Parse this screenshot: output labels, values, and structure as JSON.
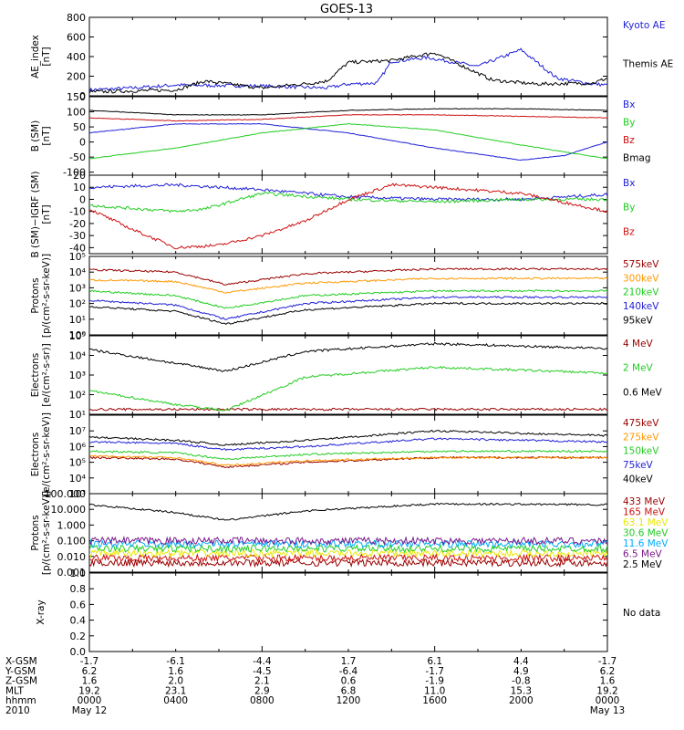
{
  "title": "GOES-13",
  "colors": {
    "black": "#000000",
    "blue": "#1f1fd6",
    "green": "#22cc22",
    "red": "#cc1111",
    "orange": "#ff9900",
    "darkred": "#990000",
    "cyan": "#00aaff",
    "yellow": "#e8e800",
    "purple": "#7a1a8a"
  },
  "chart_data": [
    {
      "type": "line",
      "ylabel": "AE_index\n[nT]",
      "ylim": [
        0,
        800
      ],
      "yticks": [
        "800",
        "600",
        "400",
        "200",
        "0"
      ],
      "series": [
        {
          "name": "Kyoto AE",
          "color": "#1f1fd6",
          "x": [
            0,
            60,
            120,
            240,
            330,
            360,
            400,
            420,
            470,
            540,
            600,
            650,
            700,
            720
          ],
          "y": [
            60,
            80,
            110,
            100,
            80,
            120,
            130,
            350,
            390,
            300,
            470,
            180,
            120,
            110
          ]
        },
        {
          "name": "Themis AE",
          "color": "#000000",
          "x": [
            0,
            120,
            160,
            240,
            310,
            330,
            360,
            420,
            480,
            560,
            620,
            700,
            720
          ],
          "y": [
            40,
            60,
            150,
            80,
            130,
            150,
            340,
            360,
            440,
            160,
            120,
            130,
            180
          ]
        }
      ],
      "legend": [
        "Kyoto AE",
        "Themis AE"
      ],
      "legend_colors": [
        "#1f1fd6",
        "#000000"
      ]
    },
    {
      "type": "line",
      "ylabel": "B (SM)\n[nT]",
      "ylim": [
        -110,
        150
      ],
      "yticks": [
        "150",
        "100",
        "50",
        "0",
        "-50",
        "-100"
      ],
      "series": [
        {
          "name": "Bx",
          "color": "#1f1fd6",
          "x": [
            0,
            120,
            240,
            360,
            480,
            600,
            660,
            720
          ],
          "y": [
            30,
            60,
            60,
            30,
            -20,
            -60,
            -45,
            0
          ]
        },
        {
          "name": "By",
          "color": "#22cc22",
          "x": [
            0,
            120,
            240,
            360,
            480,
            600,
            720
          ],
          "y": [
            -55,
            -20,
            30,
            60,
            40,
            -10,
            -55
          ]
        },
        {
          "name": "Bz",
          "color": "#cc1111",
          "x": [
            0,
            120,
            240,
            360,
            480,
            600,
            720
          ],
          "y": [
            80,
            70,
            75,
            90,
            90,
            85,
            80
          ]
        },
        {
          "name": "Bmag",
          "color": "#000000",
          "x": [
            0,
            120,
            240,
            360,
            480,
            600,
            720
          ],
          "y": [
            105,
            90,
            90,
            105,
            110,
            110,
            105
          ]
        }
      ],
      "legend": [
        "Bx",
        "By",
        "Bz",
        "Bmag"
      ],
      "legend_colors": [
        "#1f1fd6",
        "#22cc22",
        "#cc1111",
        "#000000"
      ]
    },
    {
      "type": "line",
      "ylabel": "B (SM)−IGRF (SM)\n[nT]",
      "ylim": [
        -45,
        20
      ],
      "yticks": [
        "20",
        "10",
        "0",
        "-10",
        "-20",
        "-30",
        "-40"
      ],
      "series": [
        {
          "name": "Bx",
          "color": "#1f1fd6",
          "x": [
            0,
            120,
            240,
            360,
            480,
            600,
            720
          ],
          "y": [
            10,
            12,
            8,
            2,
            0,
            0,
            4
          ]
        },
        {
          "name": "By",
          "color": "#22cc22",
          "x": [
            0,
            120,
            160,
            240,
            360,
            480,
            600,
            720
          ],
          "y": [
            -5,
            -10,
            -8,
            5,
            0,
            -2,
            0,
            0
          ]
        },
        {
          "name": "Bz",
          "color": "#cc1111",
          "x": [
            0,
            60,
            120,
            180,
            240,
            300,
            360,
            420,
            480,
            600,
            720
          ],
          "y": [
            -8,
            -25,
            -40,
            -38,
            -30,
            -18,
            0,
            12,
            10,
            5,
            -10
          ]
        }
      ],
      "legend": [
        "Bx",
        "By",
        "Bz"
      ],
      "legend_colors": [
        "#1f1fd6",
        "#22cc22",
        "#cc1111"
      ]
    },
    {
      "type": "line",
      "ylabel": "Protons\n[p/(cm²-s-sr-keV)]",
      "log": true,
      "ylim": [
        0,
        5
      ],
      "ytick_labels": [
        "10⁰",
        "10¹",
        "10²",
        "10³",
        "10⁴",
        "10⁵"
      ],
      "legend": [
        "575keV",
        "300keV",
        "210keV",
        "140keV",
        "95keV"
      ],
      "legend_colors": [
        "#990000",
        "#ff9900",
        "#22cc22",
        "#1f1fd6",
        "#000000"
      ]
    },
    {
      "type": "line",
      "ylabel": "Electrons\n[e/(cm²-s-sr)]",
      "log": true,
      "ylim": [
        1,
        5
      ],
      "ytick_labels": [
        "10¹",
        "10²",
        "10³",
        "10⁴",
        "10⁵"
      ],
      "legend": [
        "4 MeV",
        "2 MeV",
        "0.6 MeV"
      ],
      "legend_colors": [
        "#990000",
        "#22cc22",
        "#000000"
      ]
    },
    {
      "type": "line",
      "ylabel": "Electrons\n[e/(cm²-s-sr-keV)]",
      "log": true,
      "ylim": [
        2,
        7
      ],
      "ytick_labels": [
        "10³",
        "10⁴",
        "10⁵",
        "10⁶",
        "10⁷"
      ],
      "legend": [
        "475keV",
        "275keV",
        "150keV",
        "75keV",
        "40keV"
      ],
      "legend_colors": [
        "#990000",
        "#ff9900",
        "#22cc22",
        "#1f1fd6",
        "#000000"
      ]
    },
    {
      "type": "line",
      "ylabel": "Protons\n[p/(cm²-s-sr-keV)]",
      "log": true,
      "ylim": [
        -3,
        2
      ],
      "ytick_labels": [
        "0.001",
        "0.010",
        "0.100",
        "1.000",
        "10.000",
        "100.000"
      ],
      "legend": [
        "433 MeV",
        "165 MeV",
        "63.1 MeV",
        "30.6 MeV",
        "11.6 MeV",
        "6.5 MeV",
        "2.5 MeV"
      ],
      "legend_colors": [
        "#990000",
        "#cc1111",
        "#e8e800",
        "#22cc22",
        "#00aaff",
        "#7a1a8a",
        "#000000"
      ]
    },
    {
      "type": "line",
      "ylabel": "X-ray",
      "ylim": [
        0,
        1
      ],
      "yticks": [
        "1.0",
        "0.8",
        "0.6",
        "0.4",
        "0.2",
        "0.0"
      ],
      "note": "No data"
    }
  ],
  "axis_table": {
    "rows": [
      {
        "label": "X-GSM",
        "values": [
          "-1.7",
          "-6.1",
          "-4.4",
          "1.7",
          "6.1",
          "4.4",
          "-1.7"
        ]
      },
      {
        "label": "Y-GSM",
        "values": [
          "6.2",
          "1.6",
          "-4.5",
          "-6.4",
          "-1.7",
          "4.9",
          "6.2"
        ]
      },
      {
        "label": "Z-GSM",
        "values": [
          "1.6",
          "2.0",
          "2.1",
          "0.6",
          "-1.9",
          "-0.8",
          "1.6"
        ]
      },
      {
        "label": "MLT",
        "values": [
          "19.2",
          "23.1",
          "2.9",
          "6.8",
          "11.0",
          "15.3",
          "19.2"
        ]
      },
      {
        "label": "hhmm",
        "values": [
          "0000",
          "0400",
          "0800",
          "1200",
          "1600",
          "2000",
          "0000"
        ]
      },
      {
        "label": "2010",
        "values": [
          "May 12",
          "",
          "",
          "",
          "",
          "",
          "May 13"
        ]
      }
    ]
  }
}
